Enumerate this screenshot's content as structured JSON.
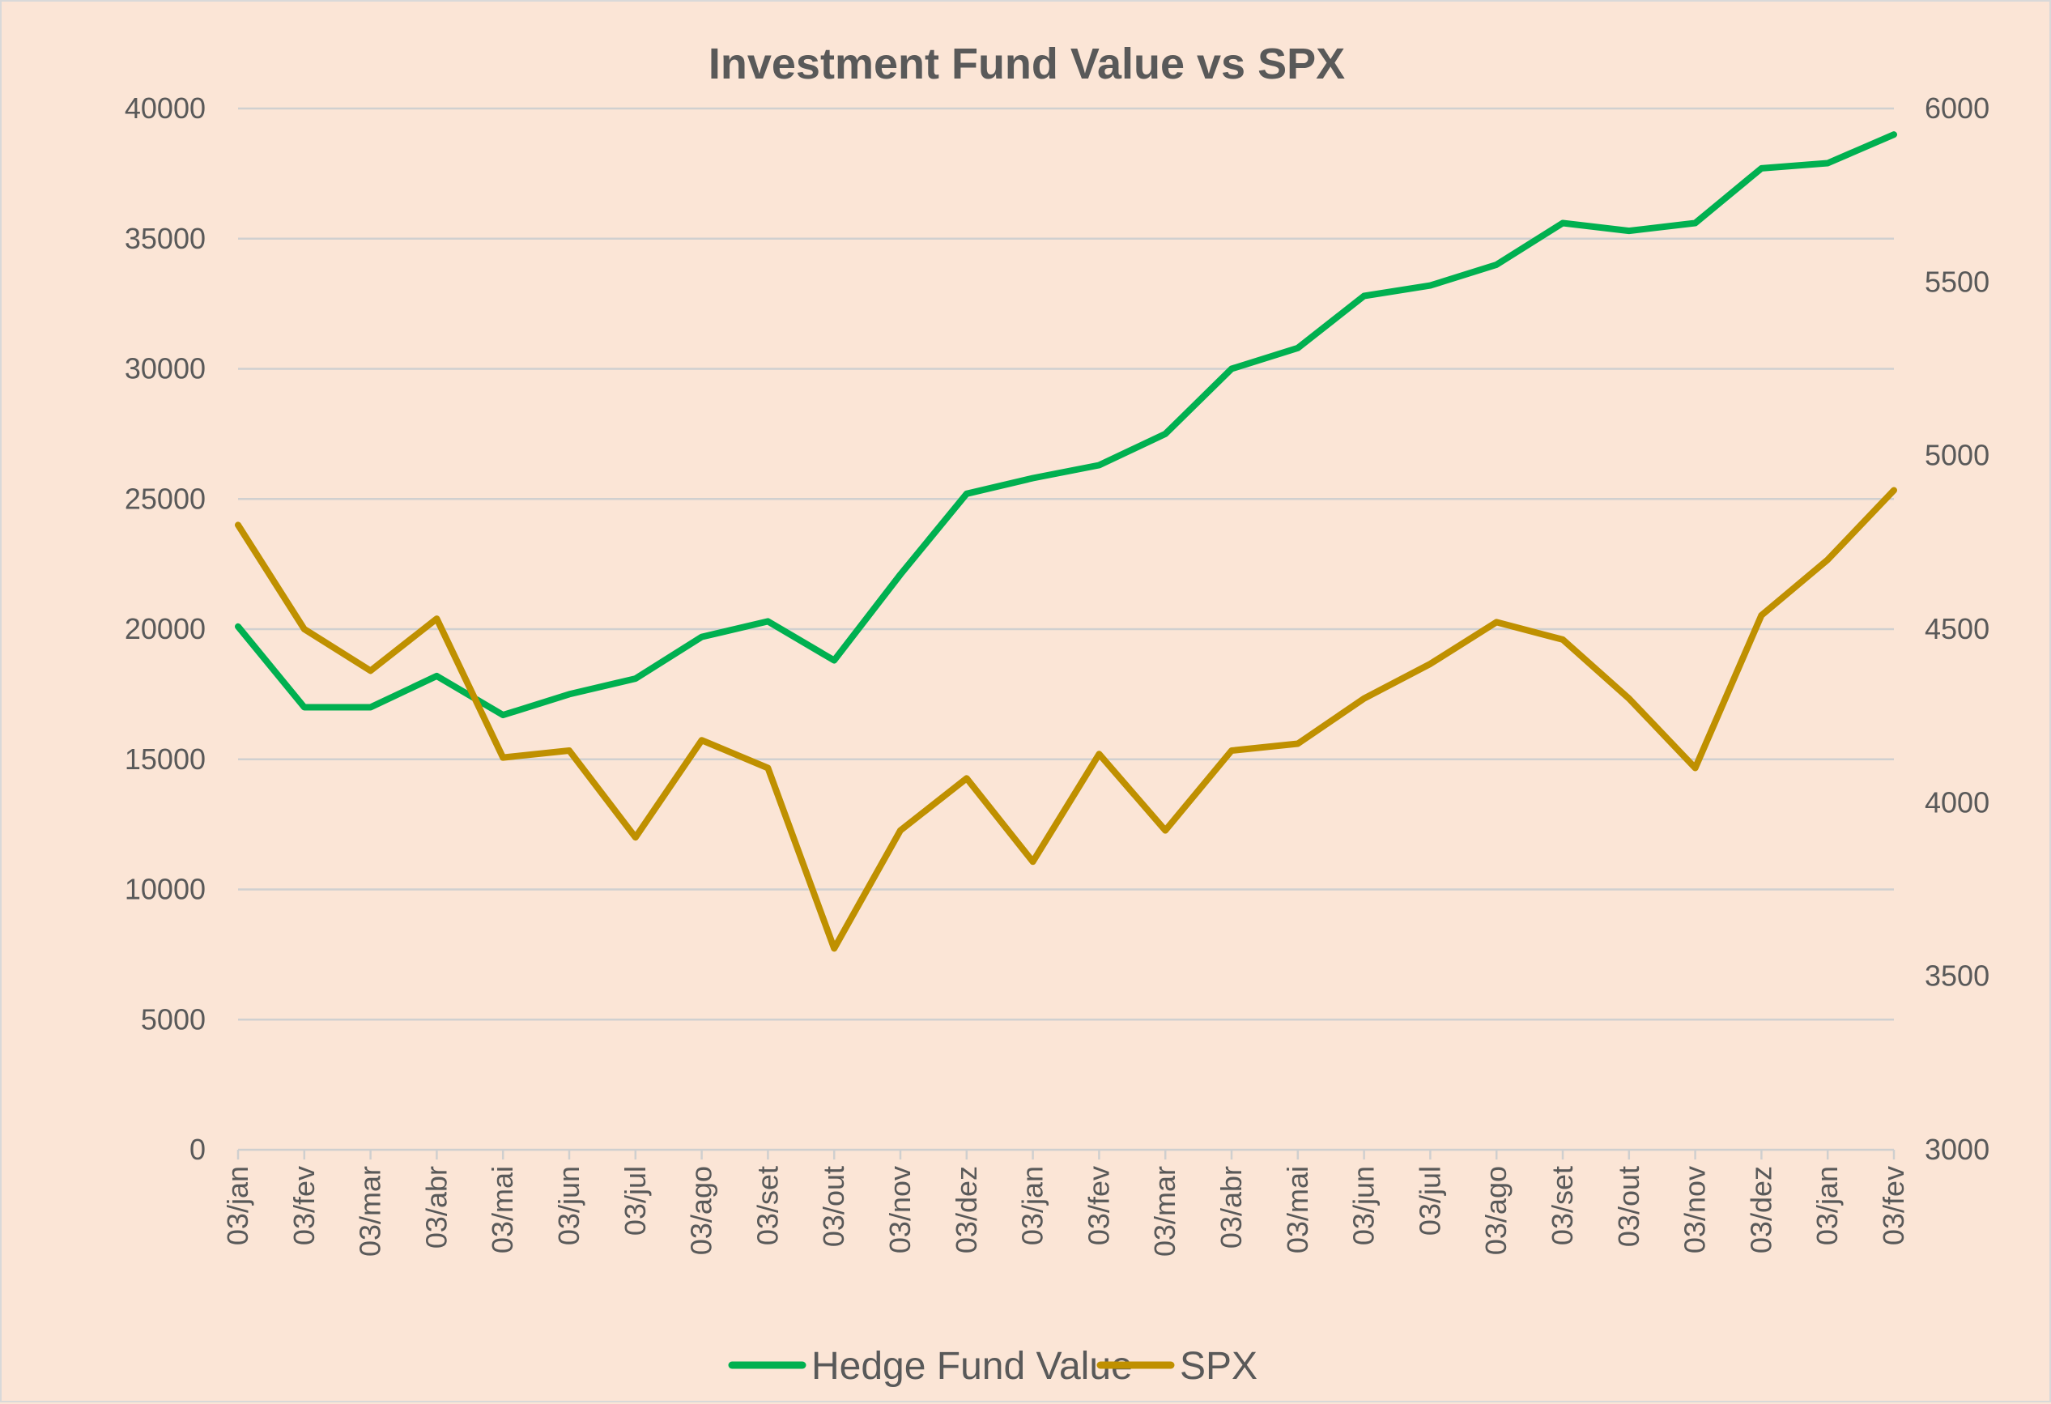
{
  "chart_data": {
    "type": "line",
    "title": "Investment Fund Value vs SPX",
    "xlabel": "",
    "ylabel": "",
    "ylim": [
      0,
      40000
    ],
    "y2lim": [
      3000,
      6000
    ],
    "y_ticks": [
      "0",
      "5000",
      "10000",
      "15000",
      "20000",
      "25000",
      "30000",
      "35000",
      "40000"
    ],
    "y2_ticks": [
      "3000",
      "3500",
      "4000",
      "4500",
      "5000",
      "5500",
      "6000"
    ],
    "x_tick_labels": [
      "03/jan",
      "03/fev",
      "03/mar",
      "03/abr",
      "03/mai",
      "03/jun",
      "03/jul",
      "03/ago",
      "03/set",
      "03/out",
      "03/nov",
      "03/dez",
      "03/jan",
      "03/fev",
      "03/mar",
      "03/abr",
      "03/mai",
      "03/jun",
      "03/jul",
      "03/ago",
      "03/set",
      "03/out",
      "03/nov",
      "03/dez",
      "03/jan",
      "03/fev"
    ],
    "grid": true,
    "legend_position": "bottom",
    "series": [
      {
        "name": "Hedge Fund Value",
        "axis": "left",
        "color": "#00b050",
        "x": [
          "03/jan",
          "03/fev",
          "03/mar",
          "03/abr",
          "03/mai",
          "03/jun",
          "03/jul",
          "03/ago",
          "03/set",
          "03/out",
          "03/nov",
          "03/dez",
          "03/jan",
          "03/fev",
          "03/mar",
          "03/abr",
          "03/mai",
          "03/jun",
          "03/jul",
          "03/ago",
          "03/set",
          "03/out",
          "03/nov",
          "03/dez",
          "03/jan",
          "03/fev"
        ],
        "values": [
          20100,
          17000,
          17000,
          18200,
          16700,
          17500,
          18100,
          19700,
          20300,
          18800,
          22100,
          25200,
          25800,
          26300,
          27500,
          30000,
          30800,
          32800,
          33200,
          34000,
          35600,
          35300,
          35600,
          37700,
          37900,
          39000
        ]
      },
      {
        "name": "SPX",
        "axis": "right",
        "color": "#bf9000",
        "x": [
          "03/jan",
          "03/fev",
          "03/mar",
          "03/abr",
          "03/mai",
          "03/jun",
          "03/jul",
          "03/ago",
          "03/set",
          "03/out",
          "03/nov",
          "03/dez",
          "03/jan",
          "03/fev",
          "03/mar",
          "03/abr",
          "03/mai",
          "03/jun",
          "03/jul",
          "03/ago",
          "03/set",
          "03/out",
          "03/nov",
          "03/dez",
          "03/jan",
          "03/fev"
        ],
        "values": [
          4800,
          4500,
          4380,
          4530,
          4130,
          4150,
          3900,
          4180,
          4100,
          3580,
          3920,
          4070,
          3830,
          4140,
          3920,
          4150,
          4170,
          4300,
          4400,
          4520,
          4470,
          4300,
          4100,
          4540,
          4700,
          4900
        ]
      }
    ]
  }
}
